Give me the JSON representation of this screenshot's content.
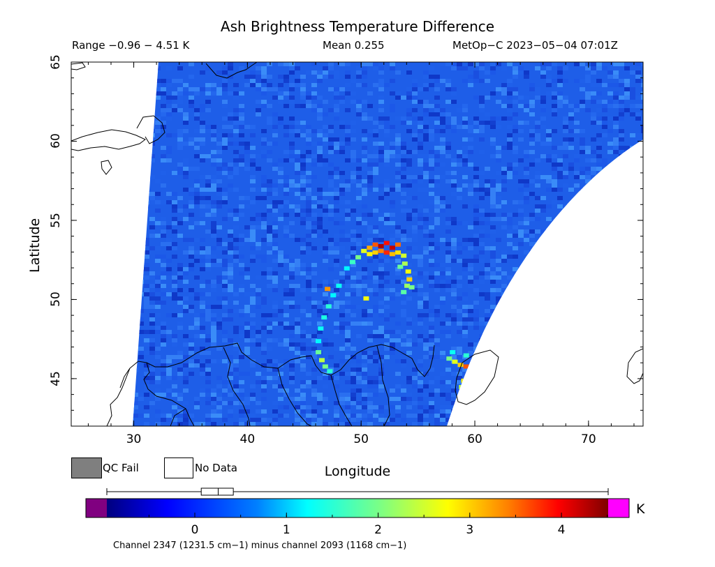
{
  "header": {
    "title": "Ash Brightness Temperature Difference",
    "range_text": "Range −0.96 − 4.51 K",
    "mean_text": "Mean 0.255",
    "satellite_text": "MetOp−C 2023−05−04 07:01Z"
  },
  "map": {
    "xlabel": "Longitude",
    "ylabel": "Latitude",
    "lon_range": [
      24.5,
      74.8
    ],
    "lat_range": [
      42.0,
      65.0
    ],
    "xticks": [
      "30",
      "40",
      "50",
      "60",
      "70"
    ],
    "yticks": [
      "45",
      "50",
      "55",
      "60",
      "65"
    ],
    "background_color": "#1f5fe6",
    "ash_feature": {
      "description_values": "arc of elevated BTD near 46-54N, 46-60E",
      "peak_value_K": 4.3
    }
  },
  "legend": {
    "qc_fail_label": "QC Fail",
    "qc_fail_color": "#7f7f7f",
    "no_data_label": "No Data",
    "no_data_color": "#ffffff"
  },
  "colorbar": {
    "min": -0.96,
    "max": 4.51,
    "ticks": [
      "0",
      "1",
      "2",
      "3",
      "4"
    ],
    "units": "K",
    "under_color": "#800080",
    "over_color": "#ff00ff",
    "box_low": 0.07,
    "box_median": 0.255,
    "box_high": 0.42,
    "whisker_low": -0.96,
    "whisker_high": 4.51
  },
  "footnote": "Channel 2347 (1231.5 cm−1) minus channel 2093 (1168 cm−1)"
}
